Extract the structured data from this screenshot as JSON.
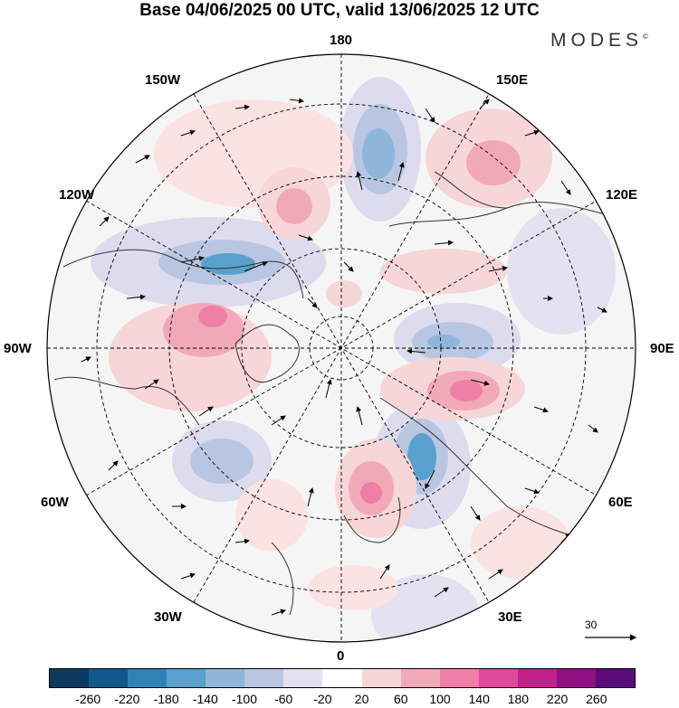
{
  "title": "Base 04/06/2025 00 UTC, valid 13/06/2025 12 UTC",
  "brand": "MODES",
  "brand_mark": "©",
  "longitude_labels": {
    "top": "180",
    "bottom": "0",
    "left": "90W",
    "right": "90E",
    "upper_left_150": "150W",
    "upper_left_120": "120W",
    "upper_right_150": "150E",
    "upper_right_120": "120E",
    "lower_left_60": "60W",
    "lower_left_30": "30W",
    "lower_right_60": "60E",
    "lower_right_30": "30E"
  },
  "reference_vector": "30",
  "colorbar": {
    "colors": [
      "#0b3a5e",
      "#10598c",
      "#2f82b8",
      "#5aa0cc",
      "#8fb6d8",
      "#b9c6e1",
      "#e1e1ef",
      "#ffffff",
      "#f7d6d8",
      "#f2a9b7",
      "#ef7fa6",
      "#e0489c",
      "#c2208a",
      "#8f1183",
      "#5a0d7a"
    ],
    "ticks": [
      "-260",
      "-220",
      "-180",
      "-140",
      "-100",
      "-60",
      "-20",
      "20",
      "60",
      "100",
      "140",
      "180",
      "220",
      "260"
    ]
  }
}
